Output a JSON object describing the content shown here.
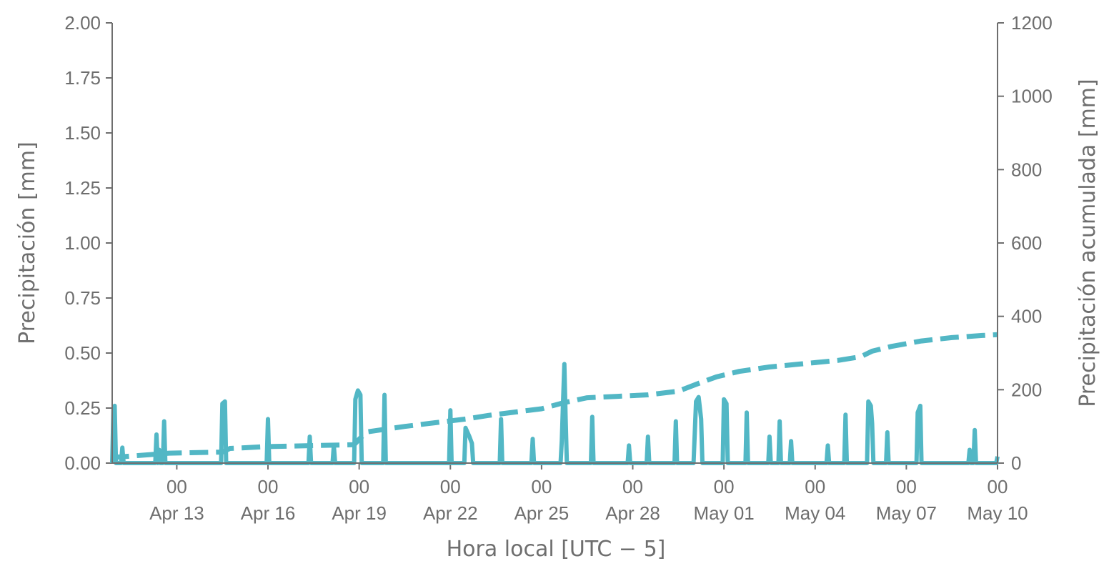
{
  "chart_data": {
    "type": "line",
    "xlabel": "Hora local [UTC − 5]",
    "ylabel": "Precipitación [mm]",
    "y2label": "Precipitación acumulada [mm]",
    "x_tick_labels": [
      {
        "hour": "00",
        "date": "Apr 13"
      },
      {
        "hour": "00",
        "date": "Apr 16"
      },
      {
        "hour": "00",
        "date": "Apr 19"
      },
      {
        "hour": "00",
        "date": "Apr 22"
      },
      {
        "hour": "00",
        "date": "Apr 25"
      },
      {
        "hour": "00",
        "date": "Apr 28"
      },
      {
        "hour": "00",
        "date": "May 01"
      },
      {
        "hour": "00",
        "date": "May 04"
      },
      {
        "hour": "00",
        "date": "May 07"
      },
      {
        "hour": "00",
        "date": "May 10"
      }
    ],
    "xlim": [
      "2024-04-10T21:00",
      "2024-05-10T00:00"
    ],
    "ylim": [
      0,
      2.0
    ],
    "y_ticks": [
      "0.00",
      "0.25",
      "0.50",
      "0.75",
      "1.00",
      "1.25",
      "1.50",
      "1.75",
      "2.00"
    ],
    "y2lim": [
      0,
      1200
    ],
    "y2_ticks": [
      "0",
      "200",
      "400",
      "600",
      "800",
      "1000",
      "1200"
    ],
    "color": "#52b7c5",
    "grid": false,
    "series": [
      {
        "style": "solid",
        "axis": "left",
        "points": [
          [
            "2024-04-10T21:00",
            0.0
          ],
          [
            "2024-04-10T22:00",
            0.25
          ],
          [
            "2024-04-10T23:00",
            0.26
          ],
          [
            "2024-04-11T00:00",
            0.0
          ],
          [
            "2024-04-11T04:00",
            0.0
          ],
          [
            "2024-04-11T05:00",
            0.07
          ],
          [
            "2024-04-11T06:00",
            0.0
          ],
          [
            "2024-04-12T07:00",
            0.0
          ],
          [
            "2024-04-12T08:00",
            0.13
          ],
          [
            "2024-04-12T09:00",
            0.0
          ],
          [
            "2024-04-12T10:00",
            0.06
          ],
          [
            "2024-04-12T11:00",
            0.0
          ],
          [
            "2024-04-12T13:00",
            0.0
          ],
          [
            "2024-04-12T14:00",
            0.19
          ],
          [
            "2024-04-12T15:00",
            0.0
          ],
          [
            "2024-04-14T11:00",
            0.0
          ],
          [
            "2024-04-14T12:00",
            0.27
          ],
          [
            "2024-04-14T14:00",
            0.28
          ],
          [
            "2024-04-14T15:00",
            0.0
          ],
          [
            "2024-04-15T23:00",
            0.0
          ],
          [
            "2024-04-16T00:00",
            0.2
          ],
          [
            "2024-04-16T01:00",
            0.0
          ],
          [
            "2024-04-17T08:00",
            0.0
          ],
          [
            "2024-04-17T09:00",
            0.12
          ],
          [
            "2024-04-17T10:00",
            0.0
          ],
          [
            "2024-04-18T03:00",
            0.0
          ],
          [
            "2024-04-18T04:00",
            0.08
          ],
          [
            "2024-04-18T05:00",
            0.0
          ],
          [
            "2024-04-18T20:00",
            0.0
          ],
          [
            "2024-04-18T21:00",
            0.29
          ],
          [
            "2024-04-18T23:00",
            0.33
          ],
          [
            "2024-04-19T01:00",
            0.31
          ],
          [
            "2024-04-19T02:00",
            0.0
          ],
          [
            "2024-04-19T19:00",
            0.0
          ],
          [
            "2024-04-19T20:00",
            0.31
          ],
          [
            "2024-04-19T21:00",
            0.0
          ],
          [
            "2024-04-21T23:00",
            0.0
          ],
          [
            "2024-04-22T00:00",
            0.24
          ],
          [
            "2024-04-22T01:00",
            0.0
          ],
          [
            "2024-04-22T11:00",
            0.0
          ],
          [
            "2024-04-22T12:00",
            0.16
          ],
          [
            "2024-04-22T15:00",
            0.12
          ],
          [
            "2024-04-22T17:00",
            0.09
          ],
          [
            "2024-04-22T18:00",
            0.0
          ],
          [
            "2024-04-23T15:00",
            0.0
          ],
          [
            "2024-04-23T16:00",
            0.2
          ],
          [
            "2024-04-23T17:00",
            0.0
          ],
          [
            "2024-04-24T16:00",
            0.0
          ],
          [
            "2024-04-24T17:00",
            0.11
          ],
          [
            "2024-04-24T18:00",
            0.0
          ],
          [
            "2024-04-25T15:00",
            0.0
          ],
          [
            "2024-04-25T16:00",
            0.1
          ],
          [
            "2024-04-25T17:00",
            0.28
          ],
          [
            "2024-04-25T18:00",
            0.45
          ],
          [
            "2024-04-25T19:00",
            0.2
          ],
          [
            "2024-04-25T20:00",
            0.0
          ],
          [
            "2024-04-26T15:00",
            0.0
          ],
          [
            "2024-04-26T16:00",
            0.21
          ],
          [
            "2024-04-26T17:00",
            0.0
          ],
          [
            "2024-04-27T20:00",
            0.0
          ],
          [
            "2024-04-27T21:00",
            0.08
          ],
          [
            "2024-04-27T22:00",
            0.0
          ],
          [
            "2024-04-28T11:00",
            0.0
          ],
          [
            "2024-04-28T12:00",
            0.12
          ],
          [
            "2024-04-28T13:00",
            0.0
          ],
          [
            "2024-04-29T09:00",
            0.0
          ],
          [
            "2024-04-29T10:00",
            0.19
          ],
          [
            "2024-04-29T11:00",
            0.0
          ],
          [
            "2024-04-30T00:00",
            0.0
          ],
          [
            "2024-04-30T02:00",
            0.28
          ],
          [
            "2024-04-30T04:00",
            0.3
          ],
          [
            "2024-04-30T06:00",
            0.2
          ],
          [
            "2024-04-30T07:00",
            0.0
          ],
          [
            "2024-04-30T23:00",
            0.0
          ],
          [
            "2024-05-01T00:00",
            0.29
          ],
          [
            "2024-05-01T02:00",
            0.27
          ],
          [
            "2024-05-01T03:00",
            0.0
          ],
          [
            "2024-05-01T17:00",
            0.0
          ],
          [
            "2024-05-01T18:00",
            0.23
          ],
          [
            "2024-05-01T19:00",
            0.0
          ],
          [
            "2024-05-02T11:00",
            0.0
          ],
          [
            "2024-05-02T12:00",
            0.12
          ],
          [
            "2024-05-02T13:00",
            0.0
          ],
          [
            "2024-05-02T19:00",
            0.0
          ],
          [
            "2024-05-02T20:00",
            0.19
          ],
          [
            "2024-05-02T21:00",
            0.0
          ],
          [
            "2024-05-03T04:00",
            0.0
          ],
          [
            "2024-05-03T05:00",
            0.1
          ],
          [
            "2024-05-03T06:00",
            0.0
          ],
          [
            "2024-05-04T09:00",
            0.0
          ],
          [
            "2024-05-04T10:00",
            0.08
          ],
          [
            "2024-05-04T11:00",
            0.0
          ],
          [
            "2024-05-04T23:00",
            0.0
          ],
          [
            "2024-05-05T00:00",
            0.22
          ],
          [
            "2024-05-05T01:00",
            0.0
          ],
          [
            "2024-05-05T17:00",
            0.0
          ],
          [
            "2024-05-05T18:00",
            0.28
          ],
          [
            "2024-05-05T20:00",
            0.26
          ],
          [
            "2024-05-05T21:00",
            0.18
          ],
          [
            "2024-05-05T22:00",
            0.0
          ],
          [
            "2024-05-06T08:00",
            0.0
          ],
          [
            "2024-05-06T09:00",
            0.14
          ],
          [
            "2024-05-06T10:00",
            0.0
          ],
          [
            "2024-05-07T08:00",
            0.0
          ],
          [
            "2024-05-07T09:00",
            0.23
          ],
          [
            "2024-05-07T11:00",
            0.26
          ],
          [
            "2024-05-07T12:00",
            0.0
          ],
          [
            "2024-05-09T01:00",
            0.0
          ],
          [
            "2024-05-09T02:00",
            0.06
          ],
          [
            "2024-05-09T03:00",
            0.0
          ],
          [
            "2024-05-09T05:00",
            0.0
          ],
          [
            "2024-05-09T06:00",
            0.15
          ],
          [
            "2024-05-09T07:00",
            0.0
          ],
          [
            "2024-05-09T23:00",
            0.0
          ],
          [
            "2024-05-10T00:00",
            0.03
          ]
        ]
      },
      {
        "style": "dashed",
        "axis": "right",
        "points": [
          [
            "2024-04-10T21:00",
            5
          ],
          [
            "2024-04-11T00:00",
            16
          ],
          [
            "2024-04-12T18:00",
            27
          ],
          [
            "2024-04-14T12:00",
            30
          ],
          [
            "2024-04-14T18:00",
            40
          ],
          [
            "2024-04-16T00:00",
            45
          ],
          [
            "2024-04-18T20:00",
            50
          ],
          [
            "2024-04-19T00:00",
            65
          ],
          [
            "2024-04-19T06:00",
            85
          ],
          [
            "2024-04-20T12:00",
            100
          ],
          [
            "2024-04-21T12:00",
            110
          ],
          [
            "2024-04-22T12:00",
            120
          ],
          [
            "2024-04-23T06:00",
            130
          ],
          [
            "2024-04-24T12:00",
            143
          ],
          [
            "2024-04-25T00:00",
            148
          ],
          [
            "2024-04-25T18:00",
            165
          ],
          [
            "2024-04-26T12:00",
            178
          ],
          [
            "2024-04-27T12:00",
            182
          ],
          [
            "2024-04-28T12:00",
            186
          ],
          [
            "2024-04-29T12:00",
            196
          ],
          [
            "2024-04-30T06:00",
            220
          ],
          [
            "2024-04-30T18:00",
            235
          ],
          [
            "2024-05-01T12:00",
            250
          ],
          [
            "2024-05-02T12:00",
            262
          ],
          [
            "2024-05-03T12:00",
            270
          ],
          [
            "2024-05-04T18:00",
            280
          ],
          [
            "2024-05-05T12:00",
            290
          ],
          [
            "2024-05-05T21:00",
            305
          ],
          [
            "2024-05-06T12:00",
            318
          ],
          [
            "2024-05-07T12:00",
            333
          ],
          [
            "2024-05-08T12:00",
            342
          ],
          [
            "2024-05-09T12:00",
            348
          ],
          [
            "2024-05-10T00:00",
            350
          ]
        ]
      }
    ]
  }
}
